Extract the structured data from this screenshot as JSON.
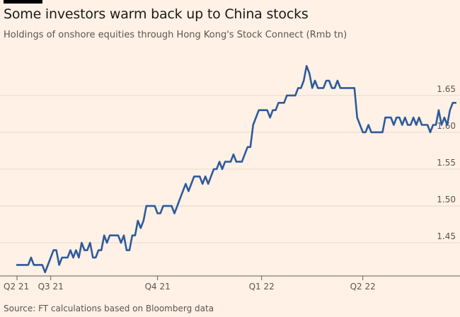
{
  "title": "Some investors warm back up to China stocks",
  "subtitle": "Holdings of onshore equities through Hong Kong's Stock Connect (Rmb tn)",
  "source": "Source: FT calculations based on Bloomberg data",
  "colors": {
    "background": "#fff1e5",
    "line": "#2e5a9c",
    "grid": "#e6d9ce",
    "text": "#5c5550",
    "topbar": "#000000"
  },
  "chart_data": {
    "type": "line",
    "title": "Some investors warm back up to China stocks",
    "subtitle": "Holdings of onshore equities through Hong Kong's Stock Connect (Rmb tn)",
    "xlabel": "",
    "ylabel": "",
    "grid": true,
    "y_axis_side": "right",
    "ylim": [
      1.405,
      1.695
    ],
    "y_ticks": [
      1.45,
      1.5,
      1.55,
      1.6,
      1.65
    ],
    "y_tick_labels": [
      "1.45",
      "1.50",
      "1.55",
      "1.60",
      "1.65"
    ],
    "x_ticks": [
      0,
      12,
      50,
      87,
      123
    ],
    "x_tick_labels": [
      "Q2 21",
      "Q3 21",
      "Q4 21",
      "Q1 22",
      "Q2 22"
    ],
    "x_range": [
      0,
      148
    ],
    "series": [
      {
        "values": [
          1.42,
          1.42,
          1.42,
          1.42,
          1.42,
          1.43,
          1.42,
          1.42,
          1.42,
          1.42,
          1.41,
          1.42,
          1.43,
          1.44,
          1.44,
          1.42,
          1.43,
          1.43,
          1.43,
          1.44,
          1.43,
          1.44,
          1.43,
          1.45,
          1.44,
          1.44,
          1.45,
          1.43,
          1.43,
          1.44,
          1.44,
          1.46,
          1.45,
          1.46,
          1.46,
          1.46,
          1.46,
          1.45,
          1.46,
          1.44,
          1.44,
          1.46,
          1.46,
          1.48,
          1.47,
          1.48,
          1.5,
          1.5,
          1.5,
          1.5,
          1.49,
          1.49,
          1.5,
          1.5,
          1.5,
          1.5,
          1.49,
          1.5,
          1.51,
          1.52,
          1.53,
          1.52,
          1.53,
          1.54,
          1.54,
          1.54,
          1.53,
          1.54,
          1.53,
          1.54,
          1.55,
          1.55,
          1.56,
          1.55,
          1.56,
          1.56,
          1.56,
          1.57,
          1.56,
          1.56,
          1.56,
          1.57,
          1.58,
          1.58,
          1.61,
          1.62,
          1.63,
          1.63,
          1.63,
          1.63,
          1.62,
          1.63,
          1.63,
          1.64,
          1.64,
          1.64,
          1.65,
          1.65,
          1.65,
          1.65,
          1.66,
          1.66,
          1.67,
          1.69,
          1.68,
          1.66,
          1.67,
          1.66,
          1.66,
          1.66,
          1.67,
          1.67,
          1.66,
          1.66,
          1.67,
          1.66,
          1.66,
          1.66,
          1.66,
          1.66,
          1.66,
          1.62,
          1.61,
          1.6,
          1.6,
          1.61,
          1.6,
          1.6,
          1.6,
          1.6,
          1.6,
          1.62,
          1.62,
          1.62,
          1.61,
          1.62,
          1.62,
          1.61,
          1.62,
          1.61,
          1.61,
          1.62,
          1.61,
          1.62,
          1.61,
          1.61,
          1.61,
          1.6,
          1.61,
          1.61,
          1.63,
          1.61,
          1.62,
          1.61,
          1.63,
          1.64,
          1.64
        ]
      }
    ]
  }
}
